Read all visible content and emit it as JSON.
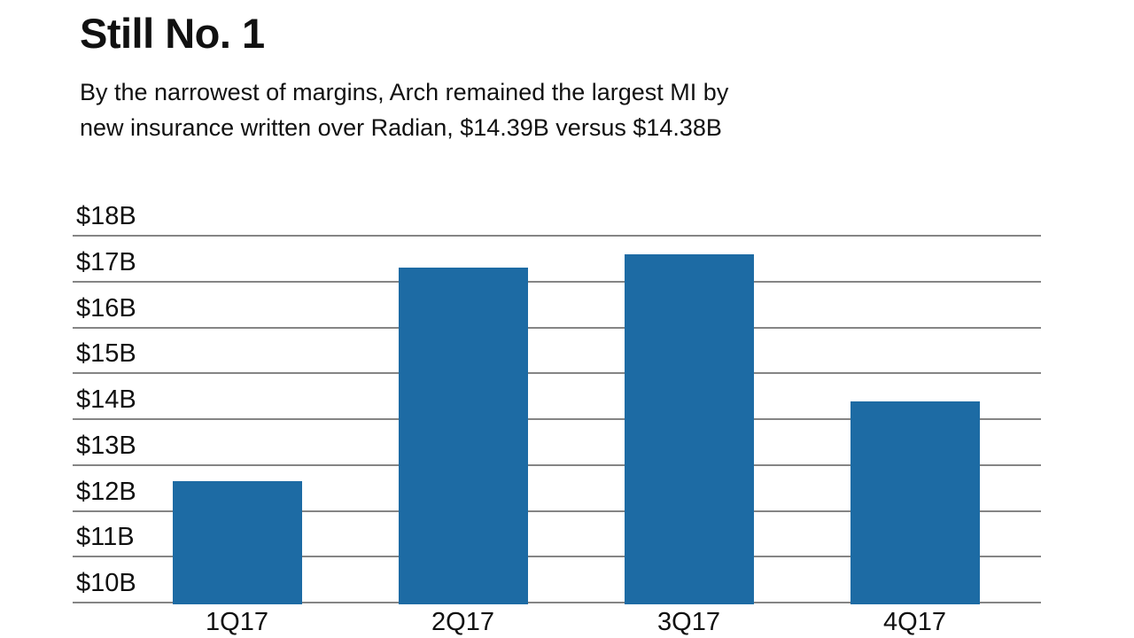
{
  "header": {
    "title": "Still No. 1",
    "subtitle": "By the narrowest of margins, Arch remained the largest MI by\nnew insurance written over Radian, $14.39B versus $14.38B"
  },
  "chart_data": {
    "type": "bar",
    "title": "Still No. 1",
    "subtitle": "By the narrowest of margins, Arch remained the largest MI by new insurance written over Radian, $14.39B versus $14.38B",
    "categories": [
      "1Q17",
      "2Q17",
      "3Q17",
      "4Q17"
    ],
    "values": [
      12.65,
      17.3,
      17.6,
      14.39
    ],
    "unit": "billions USD",
    "xlabel": "",
    "ylabel": "",
    "ylim": [
      10,
      18
    ],
    "grid": true,
    "legend": false,
    "yticks": [
      {
        "value": 18,
        "label": "$18B"
      },
      {
        "value": 17,
        "label": "$17B"
      },
      {
        "value": 16,
        "label": "$16B"
      },
      {
        "value": 15,
        "label": "$15B"
      },
      {
        "value": 14,
        "label": "$14B"
      },
      {
        "value": 13,
        "label": "$13B"
      },
      {
        "value": 12,
        "label": "$12B"
      },
      {
        "value": 11,
        "label": "$11B"
      },
      {
        "value": 10,
        "label": "$10B"
      }
    ],
    "bar_color": "#1d6ba4",
    "gridline_color": "#858585",
    "text_color": "#111111",
    "background": "#ffffff"
  }
}
